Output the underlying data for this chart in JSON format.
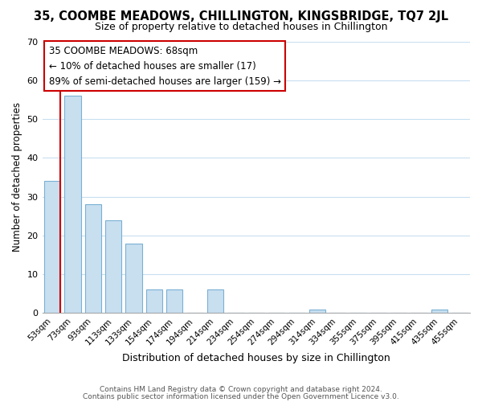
{
  "title": "35, COOMBE MEADOWS, CHILLINGTON, KINGSBRIDGE, TQ7 2JL",
  "subtitle": "Size of property relative to detached houses in Chillington",
  "xlabel": "Distribution of detached houses by size in Chillington",
  "ylabel": "Number of detached properties",
  "bar_color": "#c8dff0",
  "bar_edge_color": "#7ab0d4",
  "marker_color": "#cc0000",
  "categories": [
    "53sqm",
    "73sqm",
    "93sqm",
    "113sqm",
    "133sqm",
    "154sqm",
    "174sqm",
    "194sqm",
    "214sqm",
    "234sqm",
    "254sqm",
    "274sqm",
    "294sqm",
    "314sqm",
    "334sqm",
    "355sqm",
    "375sqm",
    "395sqm",
    "415sqm",
    "435sqm",
    "455sqm"
  ],
  "values": [
    34,
    56,
    28,
    24,
    18,
    6,
    6,
    0,
    6,
    0,
    0,
    0,
    0,
    1,
    0,
    0,
    0,
    0,
    0,
    1,
    0
  ],
  "ylim": [
    0,
    70
  ],
  "yticks": [
    0,
    10,
    20,
    30,
    40,
    50,
    60,
    70
  ],
  "annotation_lines": [
    "35 COOMBE MEADOWS: 68sqm",
    "← 10% of detached houses are smaller (17)",
    "89% of semi-detached houses are larger (159) →"
  ],
  "footer_lines": [
    "Contains HM Land Registry data © Crown copyright and database right 2024.",
    "Contains public sector information licensed under the Open Government Licence v3.0."
  ],
  "background_color": "#ffffff",
  "grid_color": "#c8dff0"
}
